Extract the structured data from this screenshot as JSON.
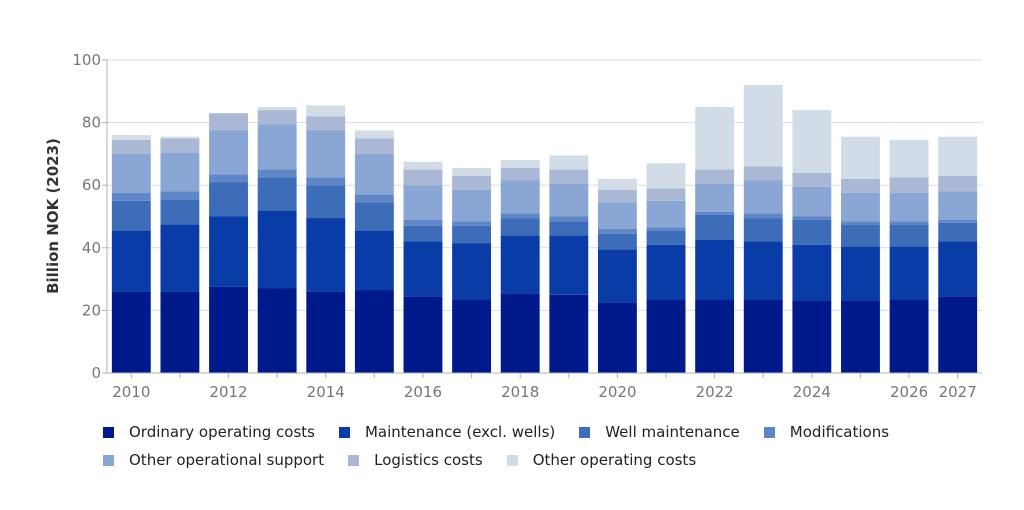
{
  "chart_data": {
    "type": "bar",
    "stacked": true,
    "title": "",
    "xlabel": "",
    "ylabel": "Billion NOK (2023)",
    "ylim": [
      0,
      100
    ],
    "yticks": [
      0,
      20,
      40,
      60,
      80,
      100
    ],
    "grid": true,
    "legend_position": "bottom",
    "categories": [
      "2010",
      "2011",
      "2012",
      "2013",
      "2014",
      "2015",
      "2016",
      "2017",
      "2018",
      "2019",
      "2020",
      "2021",
      "2022",
      "2023",
      "2024",
      "2025",
      "2026",
      "2027"
    ],
    "x_tick_labels": [
      "2010",
      "",
      "2012",
      "",
      "2014",
      "",
      "2016",
      "",
      "2018",
      "",
      "2020",
      "",
      "2022",
      "",
      "2024",
      "",
      "2026",
      "2027"
    ],
    "series": [
      {
        "name": "Ordinary operating costs",
        "color": "#001a8c",
        "values": [
          26,
          26,
          27.5,
          27,
          26,
          26.5,
          24.5,
          23.5,
          25.5,
          25,
          22.5,
          23.5,
          23.5,
          23.5,
          23,
          23,
          23.5,
          24.5
        ]
      },
      {
        "name": "Maintenance (excl. wells)",
        "color": "#0a3ca8",
        "values": [
          19.5,
          21.5,
          22.5,
          25,
          23.5,
          19,
          17.5,
          18,
          18.5,
          19,
          17,
          17.5,
          19,
          18.5,
          18,
          17.5,
          17,
          17.5
        ]
      },
      {
        "name": "Well maintenance",
        "color": "#3d6cb8",
        "values": [
          9.5,
          8,
          11,
          10.5,
          10.5,
          9,
          5,
          5.5,
          5.5,
          4.5,
          5,
          4.5,
          8,
          7.5,
          8,
          7,
          7,
          6
        ]
      },
      {
        "name": "Modifications",
        "color": "#5f87c8",
        "values": [
          2.5,
          2.5,
          2.5,
          2.5,
          2.5,
          2.5,
          2,
          1.5,
          1.5,
          1.5,
          1.5,
          1,
          1,
          1.5,
          1,
          1,
          1,
          1
        ]
      },
      {
        "name": "Other operational support",
        "color": "#8aa6d4",
        "values": [
          12.5,
          12.5,
          14,
          14.5,
          15,
          13,
          11,
          10,
          10.5,
          10.5,
          8.5,
          8.5,
          9,
          10.5,
          9.5,
          9,
          9,
          9
        ]
      },
      {
        "name": "Logistics costs",
        "color": "#aab8d6",
        "values": [
          4.5,
          4.5,
          5.5,
          4.5,
          4.5,
          5,
          5,
          4.5,
          4,
          4.5,
          4,
          4,
          4.5,
          4.5,
          4.5,
          4.5,
          5,
          5
        ]
      },
      {
        "name": "Other operating costs",
        "color": "#d2dce6",
        "values": [
          1.5,
          0.5,
          0,
          1,
          3.5,
          2.5,
          2.5,
          2.5,
          2.5,
          4.5,
          3.5,
          8,
          20,
          26,
          20,
          13.5,
          12,
          12.5
        ]
      }
    ]
  }
}
